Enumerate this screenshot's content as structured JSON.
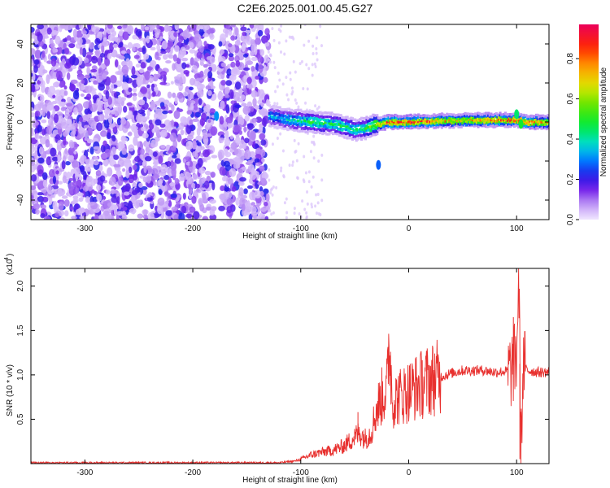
{
  "title": "C2E6.2025.001.00.45.G27",
  "chart_data": [
    {
      "type": "heatmap",
      "xlabel": "Height of straight line (km)",
      "ylabel": "Frequency (Hz)",
      "xlim": [
        -350,
        130
      ],
      "ylim": [
        -50,
        50
      ],
      "xticks": [
        -300,
        -200,
        -100,
        0,
        100
      ],
      "yticks": [
        -40,
        -20,
        0,
        20,
        40
      ],
      "colorbar": {
        "label": "Normalized spectral amplitude",
        "range": [
          0.0,
          0.97
        ],
        "ticks": [
          0.0,
          0.2,
          0.4,
          0.6,
          0.8
        ]
      },
      "ridge": {
        "description_points_x": [
          -130,
          -110,
          -90,
          -70,
          -50,
          -40,
          -30,
          -20,
          0,
          20,
          40,
          60,
          80,
          100,
          110,
          130
        ],
        "freq": [
          3,
          1,
          0,
          -1,
          -4,
          -3,
          -1,
          0,
          0,
          0.5,
          0.8,
          1,
          1,
          1,
          0,
          0
        ],
        "amplitude": [
          0.35,
          0.4,
          0.5,
          0.5,
          0.45,
          0.55,
          0.7,
          0.9,
          0.95,
          0.85,
          0.75,
          0.8,
          0.85,
          0.9,
          0.9,
          0.75
        ]
      }
    },
    {
      "type": "line",
      "xlabel": "Height of straight line (km)",
      "ylabel": "SNR (10 * v/v)",
      "y_multiplier_label": "(x10",
      "y_multiplier_exp": "4",
      "y_multiplier_close": ")",
      "xlim": [
        -350,
        130
      ],
      "ylim": [
        0,
        2.2
      ],
      "xticks": [
        -300,
        -200,
        -100,
        0,
        100
      ],
      "yticks": [
        0.5,
        1.0,
        1.5,
        2.0
      ],
      "ytick_labels": [
        "0.5",
        "1.0",
        "1.5",
        "2.0"
      ],
      "series": [
        {
          "color": "#e8302e",
          "x": [
            -350,
            -300,
            -250,
            -200,
            -150,
            -120,
            -105,
            -100,
            -90,
            -80,
            -70,
            -60,
            -50,
            -45,
            -40,
            -35,
            -30,
            -25,
            -20,
            -18,
            -15,
            -10,
            -5,
            0,
            10,
            20,
            30,
            40,
            50,
            60,
            70,
            80,
            90,
            95,
            100,
            102,
            104,
            106,
            110,
            120,
            130
          ],
          "y": [
            0.01,
            0.01,
            0.01,
            0.01,
            0.01,
            0.01,
            0.03,
            0.05,
            0.1,
            0.13,
            0.15,
            0.2,
            0.3,
            0.35,
            0.28,
            0.35,
            0.6,
            0.75,
            0.85,
            1.42,
            0.7,
            0.75,
            0.78,
            0.82,
            0.88,
            0.95,
            0.98,
            1.02,
            1.05,
            1.05,
            1.05,
            1.03,
            1.04,
            1.05,
            1.2,
            2.2,
            0.05,
            1.1,
            1.05,
            1.03,
            1.03
          ],
          "peaks": [
            [
              -18,
              1.42
            ],
            [
              -47,
              0.58
            ],
            [
              102,
              2.2
            ],
            [
              97,
              1.65
            ],
            [
              103,
              0.05
            ]
          ]
        }
      ]
    }
  ]
}
